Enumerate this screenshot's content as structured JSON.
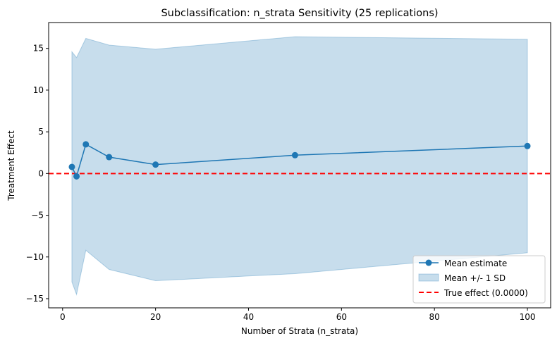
{
  "chart_data": {
    "type": "line",
    "title": "Subclassification: n_strata Sensitivity (25 replications)",
    "xlabel": "Number of Strata (n_strata)",
    "ylabel": "Treatment Effect",
    "xlim": [
      -3,
      105
    ],
    "ylim": [
      -16.1,
      18.1
    ],
    "xticks": [
      0,
      20,
      40,
      60,
      80,
      100
    ],
    "yticks": [
      -15,
      -10,
      -5,
      0,
      5,
      10,
      15
    ],
    "x": [
      2,
      3,
      5,
      10,
      20,
      50,
      100
    ],
    "series": [
      {
        "name": "Mean estimate",
        "values": [
          0.79,
          -0.34,
          3.5,
          1.97,
          1.07,
          2.2,
          3.3
        ],
        "color": "#1f77b4",
        "marker": "circle"
      }
    ],
    "band": {
      "name": "Mean +/- 1 SD",
      "upper": [
        14.6,
        13.9,
        16.2,
        15.4,
        14.9,
        16.4,
        16.1
      ],
      "lower": [
        -13.0,
        -14.5,
        -9.2,
        -11.5,
        -12.85,
        -12.0,
        -9.5
      ],
      "color": "#1f77b4",
      "opacity": 0.25
    },
    "reference_line": {
      "name": "True effect (0.0000)",
      "y": 0,
      "color": "#ff0000",
      "style": "dashed"
    },
    "legend": {
      "placement": "lower-right",
      "entries": [
        "Mean estimate",
        "Mean +/- 1 SD",
        "True effect (0.0000)"
      ]
    },
    "grid": false
  }
}
